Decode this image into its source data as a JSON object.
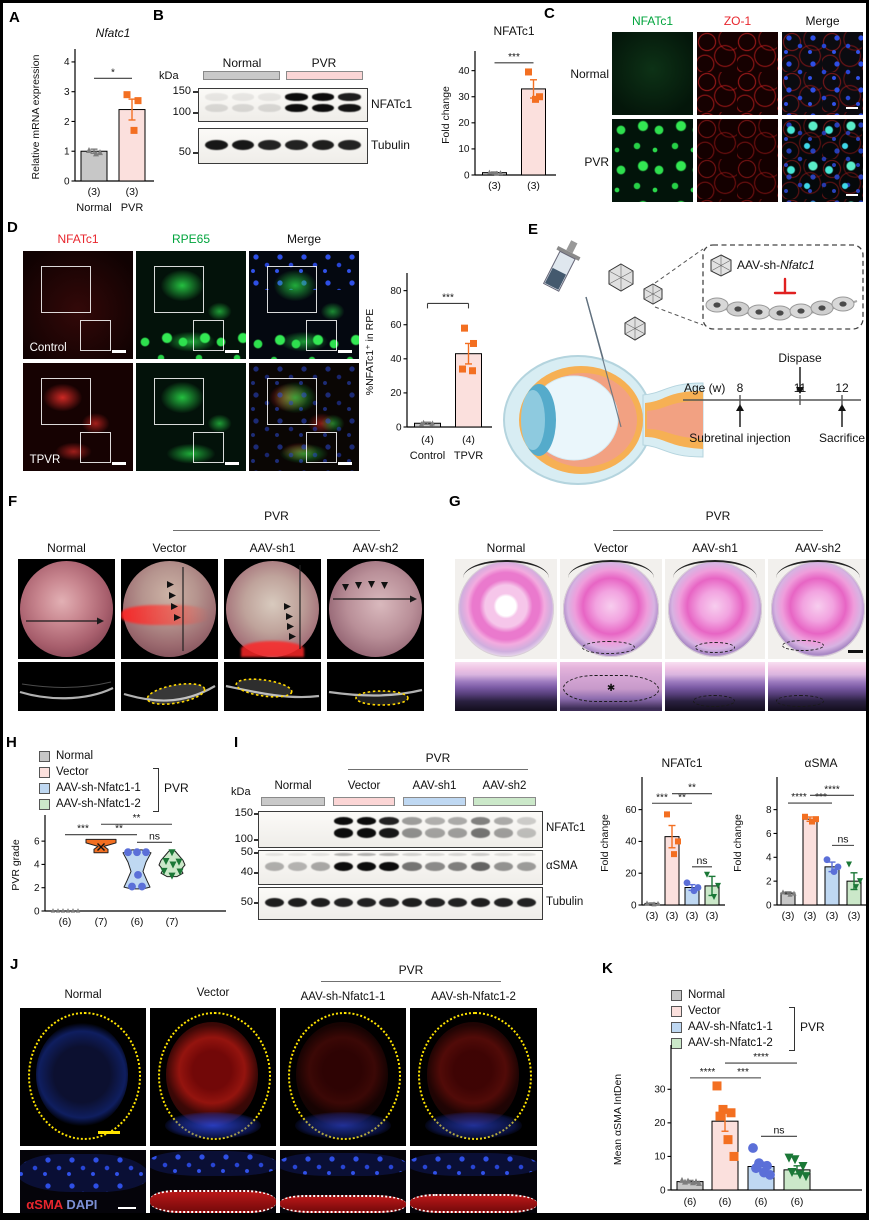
{
  "colors": {
    "orange": "#F36F21",
    "pink_fill": "#FBE0DD",
    "gray_fill": "#C7C7C7",
    "blue_fill": "#BFD8F2",
    "green_fill": "#CBE8C9",
    "blue_dot": "#5B6FD8",
    "green_dot": "#1B7837",
    "gray_dot": "#7D7D7D",
    "red_label": "#E8262D",
    "green_label": "#00A43C",
    "dapi_blue": "#7B8FD4",
    "scalebar_yellow": "#FFE400"
  },
  "panels": {
    "A": {
      "label": "A"
    },
    "B": {
      "label": "B"
    },
    "C": {
      "label": "C",
      "cols": [
        "NFATc1",
        "ZO-1",
        "Merge"
      ],
      "rows": [
        "Normal",
        "PVR"
      ]
    },
    "D": {
      "label": "D",
      "cols": [
        "NFATc1",
        "RPE65",
        "Merge"
      ],
      "rows": [
        "Control",
        "TPVR"
      ]
    },
    "E": {
      "label": "E",
      "aav_prefix": "AAV-sh-",
      "aav_gene": "Nfatc1",
      "dispase": "Dispase",
      "age_label": "Age (w)",
      "t1": "8",
      "t2": "11",
      "t3": "12",
      "injection": "Subretinal injection",
      "sacrifice": "Sacrifice"
    },
    "F": {
      "label": "F",
      "pvr": "PVR",
      "cols": [
        "Normal",
        "Vector",
        "AAV-sh1",
        "AAV-sh2"
      ]
    },
    "G": {
      "label": "G",
      "pvr": "PVR",
      "cols": [
        "Normal",
        "Vector",
        "AAV-sh1",
        "AAV-sh2"
      ],
      "star": "✱"
    },
    "H": {
      "label": "H",
      "legend": [
        "Normal",
        "Vector",
        "AAV-sh-Nfatc1-1",
        "AAV-sh-Nfatc1-2"
      ],
      "bracket": "PVR"
    },
    "I": {
      "label": "I",
      "pvr": "PVR",
      "kda": "kDa",
      "groups": [
        "Normal",
        "Vector",
        "AAV-sh1",
        "AAV-sh2"
      ],
      "bands": [
        "NFATc1",
        "αSMA",
        "Tubulin"
      ],
      "marks": {
        "b1a": "150",
        "b1b": "100",
        "b2a": "50",
        "b2b": "40",
        "b3a": "50"
      }
    },
    "J": {
      "label": "J",
      "pvr": "PVR",
      "cols": [
        "Normal",
        "Vector",
        "AAV-sh-Nfatc1-1",
        "AAV-sh-Nfatc1-2"
      ],
      "stain1": "αSMA",
      "stain2": "DAPI"
    },
    "K": {
      "label": "K",
      "legend": [
        "Normal",
        "Vector",
        "AAV-sh-Nfatc1-1",
        "AAV-sh-Nfatc1-2"
      ],
      "bracket": "PVR"
    }
  },
  "blots": {
    "B": {
      "kda": "kDa",
      "groups": [
        "Normal",
        "PVR"
      ],
      "marks": {
        "m1": "150",
        "m2": "100",
        "m3": "50"
      },
      "rows": [
        {
          "label": "NFATc1",
          "double": true,
          "lanes": [
            0.07,
            0.07,
            0.07,
            1,
            1,
            0.92
          ]
        },
        {
          "label": "Tubulin",
          "lanes": [
            0.95,
            0.95,
            0.9,
            0.9,
            0.92,
            0.9
          ]
        }
      ]
    },
    "I": {
      "rows": [
        {
          "label": "NFATc1",
          "double": true,
          "lanes": [
            0,
            0,
            0,
            1,
            1,
            0.9,
            0.38,
            0.3,
            0.32,
            0.5,
            0.32,
            0.18
          ]
        },
        {
          "label": "αSMA",
          "lanes": [
            0.3,
            0.28,
            0.33,
            1,
            1,
            1,
            0.55,
            0.45,
            0.5,
            0.62,
            0.42,
            0.38
          ]
        },
        {
          "label": "Tubulin",
          "lanes": [
            0.92,
            0.92,
            0.92,
            0.9,
            0.9,
            0.9,
            0.92,
            0.9,
            0.9,
            0.92,
            0.9,
            0.9
          ]
        }
      ]
    }
  },
  "chart_data": [
    {
      "id": "A",
      "type": "bar",
      "title": "Nfatc1",
      "title_italic": true,
      "ylabel": "Relative mRNA expression",
      "ylim": [
        0,
        4
      ],
      "yticks": [
        0,
        1,
        2,
        3,
        4
      ],
      "categories": [
        "Normal",
        "PVR"
      ],
      "n_labels": [
        "(3)",
        "(3)"
      ],
      "cat_labels": [
        "Normal",
        "PVR"
      ],
      "values": [
        1.0,
        2.4
      ],
      "errors": [
        0.07,
        0.35
      ],
      "points": [
        [
          1.04,
          0.97,
          0.93
        ],
        [
          2.9,
          2.7,
          1.7
        ]
      ],
      "bar_colors": [
        "#C7C7C7",
        "#FBE0DD"
      ],
      "markers": [
        "tri-up",
        "square"
      ],
      "marker_colors": [
        "#7D7D7D",
        "#F36F21"
      ],
      "marker_sizes": [
        6,
        7
      ],
      "sigs": [
        {
          "a": 0,
          "b": 1,
          "y": 3.45,
          "label": "*"
        }
      ]
    },
    {
      "id": "B",
      "type": "bar",
      "title": "NFATc1",
      "ylabel": "Fold change",
      "ylim": [
        0,
        40
      ],
      "yticks": [
        0,
        10,
        20,
        30,
        40
      ],
      "categories": [
        "Normal",
        "PVR"
      ],
      "n_labels": [
        "(3)",
        "(3)"
      ],
      "values": [
        0.9,
        33
      ],
      "errors": [
        0.25,
        3.5
      ],
      "points": [
        [
          1.1,
          0.9,
          0.7
        ],
        [
          39.5,
          30,
          29
        ]
      ],
      "bar_colors": [
        "#C7C7C7",
        "#FBE0DD"
      ],
      "markers": [
        "tri-up",
        "square"
      ],
      "marker_colors": [
        "#7D7D7D",
        "#F36F21"
      ],
      "marker_sizes": [
        5,
        7
      ],
      "sigs": [
        {
          "a": 0,
          "b": 1,
          "y": 43,
          "label": "***"
        }
      ]
    },
    {
      "id": "D",
      "type": "bar",
      "ylabel": "%NFATc1⁺ in RPE",
      "ylim": [
        0,
        80
      ],
      "yticks": [
        0,
        20,
        40,
        60,
        80
      ],
      "categories": [
        "Control",
        "TPVR"
      ],
      "n_labels": [
        "(4)",
        "(4)"
      ],
      "cat_labels": [
        "Control",
        "TPVR"
      ],
      "values": [
        2.2,
        43
      ],
      "errors": [
        0.6,
        6
      ],
      "points": [
        [
          2.8,
          2.4,
          2.0,
          1.6
        ],
        [
          58,
          49,
          34,
          33
        ]
      ],
      "bar_colors": [
        "#C7C7C7",
        "#FBE0DD"
      ],
      "markers": [
        "tri-up",
        "square"
      ],
      "marker_colors": [
        "#7D7D7D",
        "#F36F21"
      ],
      "marker_sizes": [
        5,
        7
      ],
      "sigs": [
        {
          "a": 0,
          "b": 1,
          "y": 72.5,
          "label": "***",
          "drop": true
        }
      ]
    },
    {
      "id": "H",
      "type": "violin",
      "ylabel": "PVR grade",
      "ylim": [
        0,
        6
      ],
      "yticks": [
        0,
        2,
        4,
        6
      ],
      "n_labels": [
        "(6)",
        "(7)",
        "(6)",
        "(7)"
      ],
      "groups": [
        {
          "name": "Normal",
          "points": [
            0.05,
            0.05,
            0.05,
            0.05,
            0.05,
            0.05
          ],
          "dx": [
            -12,
            -7,
            -2,
            3,
            8,
            13
          ],
          "marker": "tri-up",
          "marker_color": "#7D7D7D",
          "size": 4.5
        },
        {
          "name": "Vector",
          "violin": [
            [
              6.15,
              15
            ],
            [
              5.85,
              15
            ],
            [
              5.55,
              3
            ],
            [
              5.3,
              7
            ],
            [
              5.0,
              7
            ]
          ],
          "fill": "#F36F21",
          "stroke": "#222",
          "xmark": 5.5
        },
        {
          "name": "AAV-sh-Nfatc1-1",
          "violin": [
            [
              5.25,
              5
            ],
            [
              5.0,
              14
            ],
            [
              4.2,
              9
            ],
            [
              3.4,
              6
            ],
            [
              2.6,
              10
            ],
            [
              2.05,
              13
            ],
            [
              1.9,
              6
            ]
          ],
          "fill": "#BFD8F2",
          "stroke": "#222",
          "points": [
            5.05,
            5.05,
            5.05,
            3.1,
            2.1,
            2.1
          ],
          "dx": [
            -9,
            0,
            9,
            1,
            -5,
            5
          ],
          "marker": "circle",
          "marker_color": "#5B6FD8",
          "size": 7
        },
        {
          "name": "AAV-sh-Nfatc1-2",
          "violin": [
            [
              5.15,
              3
            ],
            [
              4.85,
              6
            ],
            [
              4.35,
              11
            ],
            [
              3.95,
              13
            ],
            [
              3.55,
              9
            ],
            [
              3.25,
              11
            ],
            [
              2.95,
              5
            ]
          ],
          "fill": "#CBE8C9",
          "stroke": "#222",
          "points": [
            5.0,
            4.25,
            4.2,
            3.95,
            3.4,
            3.35,
            3.0
          ],
          "dx": [
            0,
            -6,
            7,
            1,
            -8,
            8,
            0
          ],
          "marker": "tri-down",
          "marker_color": "#1B7837",
          "size": 7
        }
      ],
      "sigs": [
        {
          "a": 0,
          "b": 1,
          "y": 6.55,
          "label": "***"
        },
        {
          "a": 1,
          "b": 2,
          "y": 6.55,
          "label": "**"
        },
        {
          "a": 2,
          "b": 3,
          "y": 5.9,
          "label": "ns"
        },
        {
          "a": 1,
          "b": 3,
          "y": 7.45,
          "label": "**"
        }
      ]
    },
    {
      "id": "I1",
      "type": "bar",
      "title": "NFATc1",
      "ylabel": "Fold change",
      "ylim": [
        0,
        60
      ],
      "yticks": [
        0,
        20,
        40,
        60
      ],
      "n_labels": [
        "(3)",
        "(3)",
        "(3)",
        "(3)"
      ],
      "values": [
        1,
        43,
        11,
        12
      ],
      "errors": [
        0.3,
        7,
        1.8,
        6
      ],
      "points": [
        [
          1.3,
          1.0,
          0.7
        ],
        [
          57,
          40,
          32
        ],
        [
          14,
          11,
          9
        ],
        [
          19,
          12,
          5
        ]
      ],
      "bar_colors": [
        "#C7C7C7",
        "#FBE0DD",
        "#BFD8F2",
        "#CBE8C9"
      ],
      "markers": [
        "tri-up",
        "square",
        "circle",
        "tri-down"
      ],
      "marker_colors": [
        "#7D7D7D",
        "#F36F21",
        "#5B6FD8",
        "#1B7837"
      ],
      "marker_sizes": [
        5,
        6,
        6,
        6
      ],
      "sigs": [
        {
          "a": 0,
          "b": 1,
          "y": 64,
          "label": "***"
        },
        {
          "a": 1,
          "b": 2,
          "y": 64,
          "label": "**"
        },
        {
          "a": 2,
          "b": 3,
          "y": 24,
          "label": "ns"
        },
        {
          "a": 1,
          "b": 3,
          "y": 70,
          "label": "**"
        }
      ]
    },
    {
      "id": "I2",
      "type": "bar",
      "title": "αSMA",
      "ylabel": "Fold change",
      "ylim": [
        0,
        8
      ],
      "yticks": [
        0,
        2,
        4,
        6,
        8
      ],
      "n_labels": [
        "(3)",
        "(3)",
        "(3)",
        "(3)"
      ],
      "values": [
        1,
        7.2,
        3.2,
        2.0
      ],
      "errors": [
        0.1,
        0.18,
        0.4,
        0.7
      ],
      "points": [
        [
          1.1,
          1.0,
          0.9
        ],
        [
          7.4,
          7.2,
          7.0
        ],
        [
          3.8,
          3.2,
          2.8
        ],
        [
          3.4,
          2.0,
          1.5
        ]
      ],
      "bar_colors": [
        "#C7C7C7",
        "#FBE0DD",
        "#BFD8F2",
        "#CBE8C9"
      ],
      "markers": [
        "tri-up",
        "square",
        "circle",
        "tri-down"
      ],
      "marker_colors": [
        "#7D7D7D",
        "#F36F21",
        "#5B6FD8",
        "#1B7837"
      ],
      "marker_sizes": [
        5,
        6,
        6,
        6
      ],
      "sigs": [
        {
          "a": 0,
          "b": 1,
          "y": 8.55,
          "label": "****"
        },
        {
          "a": 1,
          "b": 2,
          "y": 8.55,
          "label": "***"
        },
        {
          "a": 2,
          "b": 3,
          "y": 5.0,
          "label": "ns"
        },
        {
          "a": 1,
          "b": 3,
          "y": 9.2,
          "label": "****"
        }
      ]
    },
    {
      "id": "K",
      "type": "bar",
      "ylabel": "Mean αSMA IntDen",
      "ylim": [
        0,
        30
      ],
      "yticks": [
        0,
        10,
        20,
        30
      ],
      "n_labels": [
        "(6)",
        "(6)",
        "(6)",
        "(6)"
      ],
      "values": [
        2.5,
        20.5,
        7,
        6
      ],
      "errors": [
        0.35,
        3,
        1.3,
        1.2
      ],
      "points": [
        [
          3.0,
          2.8,
          2.6,
          2.5,
          2.3,
          2.1
        ],
        [
          31,
          24,
          23,
          22,
          15,
          10
        ],
        [
          12.5,
          8,
          7.2,
          6.5,
          5.2,
          4.5
        ],
        [
          9.5,
          9,
          7,
          5.2,
          4.5,
          4
        ]
      ],
      "bar_colors": [
        "#C7C7C7",
        "#FBE0DD",
        "#BFD8F2",
        "#CBE8C9"
      ],
      "markers": [
        "tri-up",
        "square",
        "circle",
        "tri-down"
      ],
      "marker_colors": [
        "#7D7D7D",
        "#F36F21",
        "#5B6FD8",
        "#1B7837"
      ],
      "marker_sizes": [
        6,
        9,
        9,
        9
      ],
      "sigs": [
        {
          "a": 0,
          "b": 1,
          "y": 33.4,
          "label": "****"
        },
        {
          "a": 1,
          "b": 2,
          "y": 33.4,
          "label": "***"
        },
        {
          "a": 2,
          "b": 3,
          "y": 16,
          "label": "ns"
        },
        {
          "a": 1,
          "b": 3,
          "y": 37.8,
          "label": "****"
        }
      ]
    }
  ]
}
